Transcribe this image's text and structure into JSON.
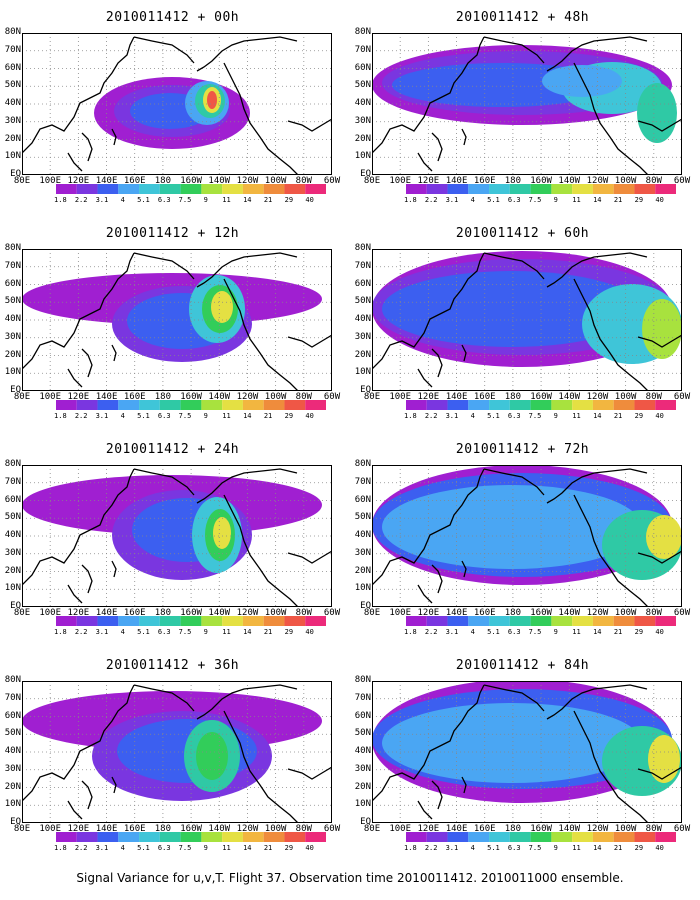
{
  "panels": [
    {
      "title": "2010011412 + 00h"
    },
    {
      "title": "2010011412 + 48h"
    },
    {
      "title": "2010011412 + 12h"
    },
    {
      "title": "2010011412 + 60h"
    },
    {
      "title": "2010011412 + 24h"
    },
    {
      "title": "2010011412 + 72h"
    },
    {
      "title": "2010011412 + 36h"
    },
    {
      "title": "2010011412 + 84h"
    }
  ],
  "lon_labels": [
    "80E",
    "100E",
    "120E",
    "140E",
    "160E",
    "180",
    "160W",
    "140W",
    "120W",
    "100W",
    "80W",
    "60W"
  ],
  "lat_labels": [
    "80N",
    "70N",
    "60N",
    "50N",
    "40N",
    "30N",
    "20N",
    "10N",
    "EQ"
  ],
  "colorbar": {
    "levels": [
      "1.8",
      "2.2",
      "3.1",
      "4",
      "5.1",
      "6.3",
      "7.5",
      "9",
      "11",
      "14",
      "21",
      "29",
      "40"
    ],
    "colors": [
      "#a01fd1",
      "#7a36e0",
      "#3c5ff0",
      "#4aa6f3",
      "#3fc5d8",
      "#2fc9a5",
      "#32cd5a",
      "#a8e23e",
      "#e4e043",
      "#f2b640",
      "#ef8c3c",
      "#ef5746",
      "#ec2a7a"
    ]
  },
  "footer": "Signal Variance for u,v,T. Flight 37. Observation time 2010011412. 2010011000 ensemble."
}
